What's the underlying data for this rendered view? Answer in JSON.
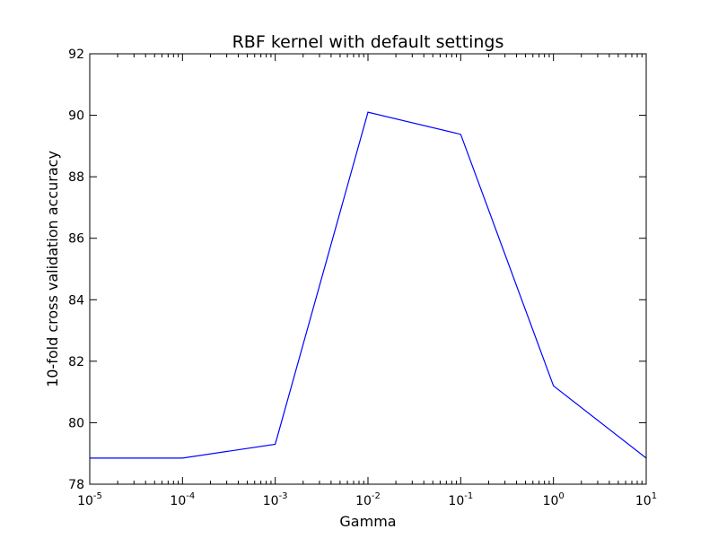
{
  "chart_data": {
    "type": "line",
    "title": "RBF kernel with default settings",
    "xlabel": "Gamma",
    "ylabel": "10-fold cross validation accuracy",
    "xscale": "log",
    "xlim": [
      1e-05,
      10
    ],
    "ylim": [
      78,
      92
    ],
    "grid": false,
    "x_ticks": [
      {
        "value": 1e-05,
        "base": "10",
        "exp": "-5"
      },
      {
        "value": 0.0001,
        "base": "10",
        "exp": "-4"
      },
      {
        "value": 0.001,
        "base": "10",
        "exp": "-3"
      },
      {
        "value": 0.01,
        "base": "10",
        "exp": "-2"
      },
      {
        "value": 0.1,
        "base": "10",
        "exp": "-1"
      },
      {
        "value": 1,
        "base": "10",
        "exp": "0"
      },
      {
        "value": 10,
        "base": "10",
        "exp": "1"
      }
    ],
    "y_ticks": [
      78,
      80,
      82,
      84,
      86,
      88,
      90,
      92
    ],
    "series": [
      {
        "color": "#0000ff",
        "x": [
          1e-05,
          0.0001,
          0.001,
          0.01,
          0.1,
          1,
          10
        ],
        "y": [
          78.85,
          78.85,
          79.3,
          90.1,
          89.38,
          81.2,
          78.85
        ]
      }
    ]
  }
}
